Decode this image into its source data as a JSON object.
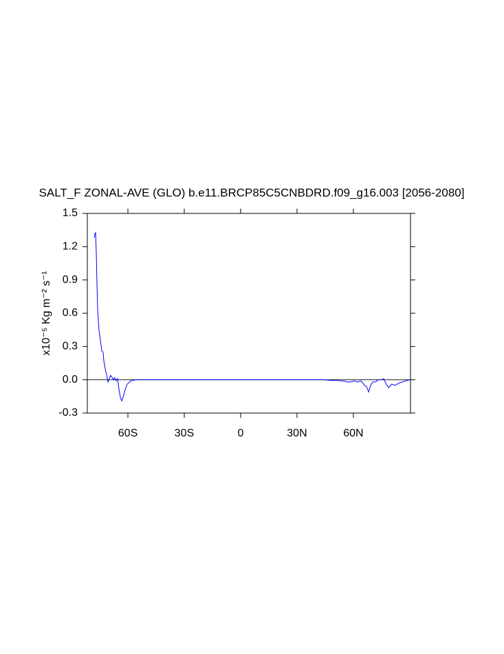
{
  "chart_data": {
    "type": "line",
    "title": "SALT_F ZONAL-AVE (GLO) b.e11.BRCP85C5CNBDRD.f09_g16.003 [2056-2080]",
    "ylabel": "x10⁻⁵ Kg m⁻² s⁻¹",
    "x": [
      -77.9,
      -77.6,
      -77.2,
      -76.8,
      -76.5,
      -76.1,
      -75.4,
      -74.6,
      -73.9,
      -73.2,
      -72.8,
      -72.1,
      -71.3,
      -70.6,
      -69.9,
      -69.2,
      -68.4,
      -67.7,
      -67.0,
      -66.2,
      -65.5,
      -64.8,
      -64.0,
      -63.3,
      -62.6,
      -61.5,
      -60.4,
      -58.5,
      -55.6,
      44,
      47.6,
      51.2,
      53,
      54.9,
      56.7,
      58.5,
      60.4,
      62.2,
      64,
      65.1,
      65.9,
      67,
      68.1,
      69.2,
      70.3,
      71.7,
      73.2,
      75,
      76.1,
      77.2,
      78.7,
      80.5,
      82.3,
      84.2,
      86,
      87.8,
      90
    ],
    "series": [
      {
        "color": "#0000ff",
        "values": [
          1.28,
          1.31,
          1.33,
          1.13,
          0.88,
          0.63,
          0.45,
          0.35,
          0.26,
          0.25,
          0.17,
          0.1,
          0.04,
          -0.02,
          0.01,
          0.04,
          0.02,
          0,
          0.02,
          -0.01,
          0.01,
          -0.08,
          -0.16,
          -0.19,
          -0.16,
          -0.09,
          -0.04,
          -0.01,
          0,
          0,
          -0.005,
          -0.005,
          -0.01,
          -0.01,
          -0.02,
          -0.02,
          -0.01,
          -0.02,
          -0.01,
          -0.03,
          -0.05,
          -0.06,
          -0.11,
          -0.05,
          -0.02,
          -0.02,
          0,
          0,
          0.01,
          -0.03,
          -0.07,
          -0.04,
          -0.05,
          -0.03,
          -0.02,
          -0.01,
          0
        ]
      }
    ],
    "xlim": [
      -81.6,
      90.4
    ],
    "ylim": [
      -0.3,
      1.5
    ],
    "xticks": [
      {
        "value": -60,
        "label": "60S"
      },
      {
        "value": -30,
        "label": "30S"
      },
      0,
      {
        "value": 30,
        "label": "30N"
      },
      {
        "value": 60,
        "label": "60N"
      }
    ],
    "yticks": [
      -0.3,
      {
        "value": 0,
        "label": "0.0"
      },
      0.3,
      0.6,
      0.9,
      1.2,
      1.5
    ],
    "yref": 0
  }
}
